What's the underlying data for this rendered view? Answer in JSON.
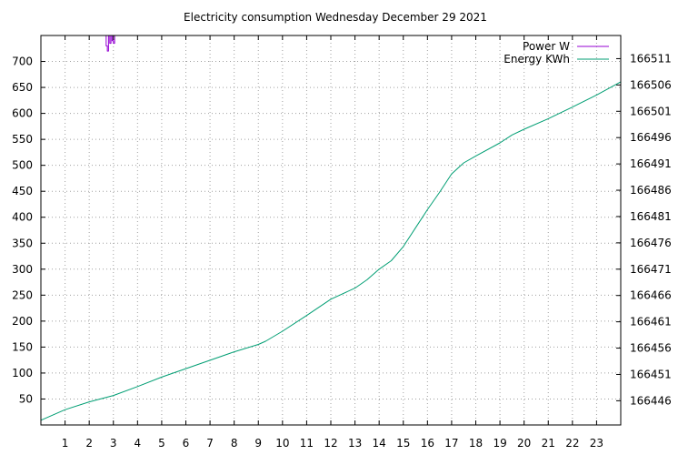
{
  "chart_data": {
    "type": "line",
    "title": "Electricity consumption Wednesday December 29 2021",
    "xlim": [
      0,
      24
    ],
    "x_ticks": [
      "1",
      "2",
      "3",
      "4",
      "5",
      "6",
      "7",
      "8",
      "9",
      "10",
      "11",
      "12",
      "13",
      "14",
      "15",
      "16",
      "17",
      "18",
      "19",
      "20",
      "21",
      "22",
      "23"
    ],
    "y_left_lim": [
      0,
      750
    ],
    "y_left_ticks": [
      "50",
      "100",
      "150",
      "200",
      "250",
      "300",
      "350",
      "400",
      "450",
      "500",
      "550",
      "600",
      "650",
      "700"
    ],
    "y_right_lim": [
      166441.4,
      166515.4
    ],
    "y_right_ticks": [
      "166446",
      "166451",
      "166456",
      "166461",
      "166466",
      "166471",
      "166476",
      "166481",
      "166486",
      "166491",
      "166496",
      "166501",
      "166506",
      "166511"
    ],
    "grid": true,
    "legend_position": "top-right",
    "series": [
      {
        "name": "Power W",
        "axis": "left",
        "color": "#9400d3",
        "x": [
          2.7,
          2.7,
          2.75,
          2.75,
          2.8,
          2.8,
          2.85,
          2.85,
          2.9,
          2.9,
          2.95,
          2.95,
          3.0,
          3.0,
          3.05,
          3.05
        ],
        "y": [
          750,
          730,
          730,
          720,
          720,
          750,
          750,
          735,
          735,
          750,
          750,
          740,
          740,
          735,
          735,
          750
        ]
      },
      {
        "name": "Energy KWh",
        "axis": "right",
        "color": "#009e73",
        "x": [
          0,
          1,
          2,
          3,
          4,
          5,
          6,
          7,
          8,
          9,
          9.3,
          10,
          11,
          12,
          13,
          13.5,
          14,
          14.5,
          15,
          15.5,
          16,
          16.5,
          17,
          17.5,
          18,
          19,
          19.5,
          20,
          21,
          22,
          23,
          24
        ],
        "y": [
          166442.3,
          166444.3,
          166445.8,
          166447.0,
          166448.7,
          166450.5,
          166452.1,
          166453.7,
          166455.3,
          166456.7,
          166457.3,
          166459.2,
          166462.2,
          166465.3,
          166467.4,
          166469.0,
          166471.0,
          166472.6,
          166475.3,
          166478.8,
          166482.3,
          166485.6,
          166489.1,
          166491.2,
          166492.5,
          166495.0,
          166496.5,
          166497.6,
          166499.6,
          166501.8,
          166504.1,
          166506.6
        ]
      }
    ]
  }
}
